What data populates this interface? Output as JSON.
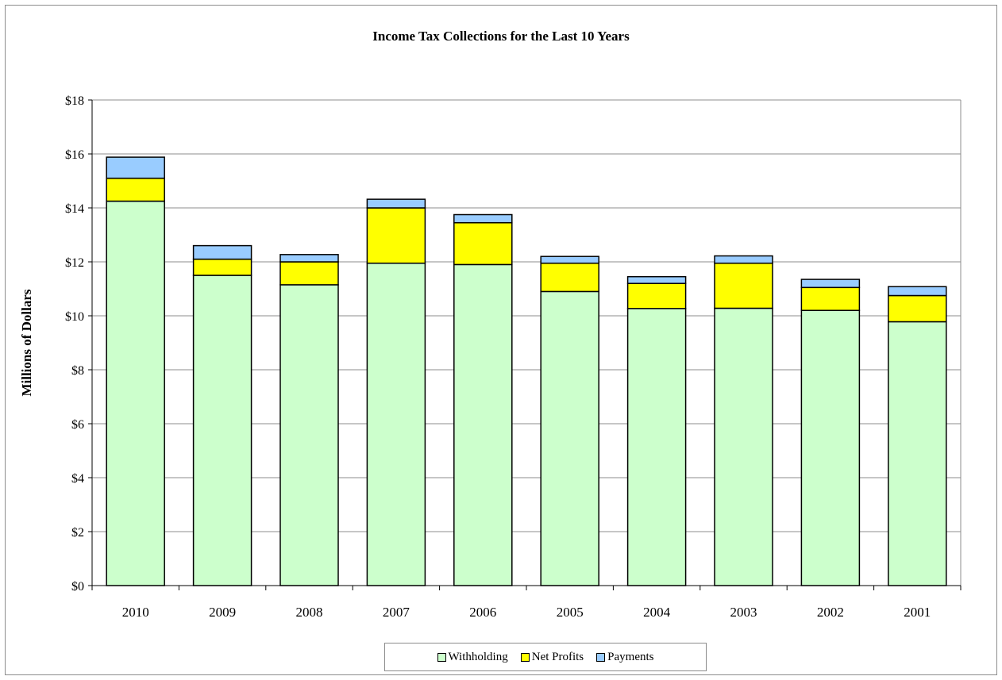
{
  "chart_data": {
    "type": "bar",
    "stacked": true,
    "title": "Income Tax Collections for the Last 10 Years",
    "xlabel": "",
    "ylabel": "Millions of Dollars",
    "categories": [
      "2010",
      "2009",
      "2008",
      "2007",
      "2006",
      "2005",
      "2004",
      "2003",
      "2002",
      "2001"
    ],
    "series": [
      {
        "name": "Withholding",
        "color": "#ccffcc",
        "values": [
          14.25,
          11.5,
          11.15,
          11.95,
          11.9,
          10.9,
          10.27,
          10.28,
          10.2,
          9.78
        ]
      },
      {
        "name": "Net Profits",
        "color": "#ffff00",
        "values": [
          0.85,
          0.6,
          0.85,
          2.05,
          1.55,
          1.05,
          0.93,
          1.67,
          0.85,
          0.97
        ]
      },
      {
        "name": "Payments",
        "color": "#99ccff",
        "values": [
          0.78,
          0.5,
          0.27,
          0.32,
          0.3,
          0.25,
          0.25,
          0.27,
          0.3,
          0.33
        ]
      }
    ],
    "ylim": [
      0,
      18
    ],
    "yticks": [
      0,
      2,
      4,
      6,
      8,
      10,
      12,
      14,
      16,
      18
    ],
    "ytick_labels": [
      "$0",
      "$2",
      "$4",
      "$6",
      "$8",
      "$10",
      "$12",
      "$14",
      "$16",
      "$18"
    ],
    "grid": true,
    "legend_position": "bottom"
  }
}
